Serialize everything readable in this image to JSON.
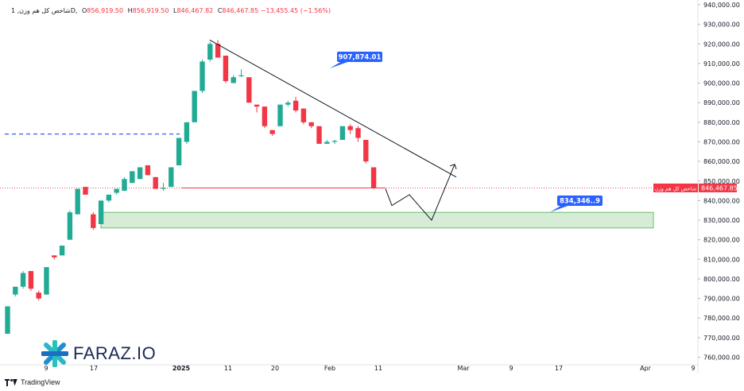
{
  "header": {
    "symbol": "شاخص کل هم وزن, 1D, ",
    "open_label": "O",
    "open": "856,919.50",
    "high_label": "H",
    "high": "856,919.50",
    "low_label": "L",
    "low": "846,467.82",
    "close_label": "C",
    "close": "846,467.85",
    "change": "−13,455.45 (−1.56%)"
  },
  "watermark": {
    "brand": "FARAZ.IO",
    "logo_icon": "faraz-star-icon"
  },
  "footer": {
    "tradingview": "TradingView",
    "logo_icon": "tradingview-logo-icon"
  },
  "colors": {
    "up": "#22ab94",
    "down": "#f23645",
    "price_line": "#f23645",
    "blue_label": "#2962ff",
    "zone_fill": "#c8e6c9",
    "zone_border": "#4caf50"
  },
  "chart_data": {
    "type": "candlestick",
    "ylim": [
      755000,
      942000
    ],
    "y_ticks": [
      "760,000.00",
      "770,000.00",
      "780,000.00",
      "790,000.00",
      "800,000.00",
      "810,000.00",
      "820,000.00",
      "830,000.00",
      "840,000.00",
      "850,000.00",
      "860,000.00",
      "870,000.00",
      "880,000.00",
      "890,000.00",
      "900,000.00",
      "910,000.00",
      "920,000.00",
      "930,000.00",
      "940,000.00"
    ],
    "x_ticks": [
      "9",
      "17",
      "2025",
      "11",
      "20",
      "Feb",
      "11",
      "Mar",
      "9",
      "17",
      "Apr",
      "9"
    ],
    "candles": [
      {
        "o": 772000,
        "h": 786000,
        "l": 772000,
        "c": 786000
      },
      {
        "o": 792000,
        "h": 796000,
        "l": 791000,
        "c": 796000
      },
      {
        "o": 796000,
        "h": 804000,
        "l": 795000,
        "c": 803000
      },
      {
        "o": 804000,
        "h": 804000,
        "l": 794000,
        "c": 795000
      },
      {
        "o": 793000,
        "h": 794000,
        "l": 789000,
        "c": 790000
      },
      {
        "o": 792000,
        "h": 806000,
        "l": 792000,
        "c": 806000
      },
      {
        "o": 812000,
        "h": 812000,
        "l": 810000,
        "c": 811000
      },
      {
        "o": 812000,
        "h": 817000,
        "l": 812000,
        "c": 817000
      },
      {
        "o": 820000,
        "h": 835000,
        "l": 820000,
        "c": 834000
      },
      {
        "o": 833000,
        "h": 846000,
        "l": 833000,
        "c": 846000
      },
      {
        "o": 847000,
        "h": 847000,
        "l": 843000,
        "c": 843000
      },
      {
        "o": 833000,
        "h": 834000,
        "l": 825000,
        "c": 826000
      },
      {
        "o": 828000,
        "h": 840000,
        "l": 828000,
        "c": 840000
      },
      {
        "o": 840000,
        "h": 843000,
        "l": 839000,
        "c": 843000
      },
      {
        "o": 844000,
        "h": 846000,
        "l": 843000,
        "c": 846000
      },
      {
        "o": 845000,
        "h": 852000,
        "l": 845000,
        "c": 851000
      },
      {
        "o": 849000,
        "h": 855000,
        "l": 849000,
        "c": 855000
      },
      {
        "o": 851000,
        "h": 857000,
        "l": 851000,
        "c": 857000
      },
      {
        "o": 858000,
        "h": 858000,
        "l": 853000,
        "c": 853000
      },
      {
        "o": 852000,
        "h": 852000,
        "l": 846000,
        "c": 846000
      },
      {
        "o": 846000,
        "h": 849000,
        "l": 845000,
        "c": 846500
      },
      {
        "o": 847000,
        "h": 857000,
        "l": 847000,
        "c": 857000
      },
      {
        "o": 858000,
        "h": 872000,
        "l": 858000,
        "c": 872000
      },
      {
        "o": 870000,
        "h": 880000,
        "l": 869000,
        "c": 880000
      },
      {
        "o": 880000,
        "h": 896000,
        "l": 880000,
        "c": 896000
      },
      {
        "o": 896000,
        "h": 912000,
        "l": 895000,
        "c": 911000
      },
      {
        "o": 912000,
        "h": 921000,
        "l": 911000,
        "c": 920000
      },
      {
        "o": 920000,
        "h": 922000,
        "l": 913000,
        "c": 913000
      },
      {
        "o": 914000,
        "h": 914000,
        "l": 900000,
        "c": 901000
      },
      {
        "o": 900000,
        "h": 904000,
        "l": 900000,
        "c": 903000
      },
      {
        "o": 904000,
        "h": 907000,
        "l": 903000,
        "c": 904000
      },
      {
        "o": 903000,
        "h": 903000,
        "l": 890000,
        "c": 890000
      },
      {
        "o": 889000,
        "h": 889000,
        "l": 885000,
        "c": 888000
      },
      {
        "o": 888000,
        "h": 888000,
        "l": 877000,
        "c": 878000
      },
      {
        "o": 876000,
        "h": 876000,
        "l": 873000,
        "c": 874000
      },
      {
        "o": 878000,
        "h": 889000,
        "l": 878000,
        "c": 889000
      },
      {
        "o": 889000,
        "h": 891000,
        "l": 888000,
        "c": 890000
      },
      {
        "o": 891000,
        "h": 893000,
        "l": 885000,
        "c": 886000
      },
      {
        "o": 887000,
        "h": 887000,
        "l": 879000,
        "c": 880000
      },
      {
        "o": 880000,
        "h": 880000,
        "l": 877000,
        "c": 878000
      },
      {
        "o": 878000,
        "h": 878000,
        "l": 869000,
        "c": 869000
      },
      {
        "o": 869000,
        "h": 871000,
        "l": 869000,
        "c": 870000
      },
      {
        "o": 870000,
        "h": 871000,
        "l": 869000,
        "c": 870500
      },
      {
        "o": 871000,
        "h": 878000,
        "l": 871000,
        "c": 878000
      },
      {
        "o": 878000,
        "h": 879000,
        "l": 874000,
        "c": 876000
      },
      {
        "o": 877000,
        "h": 878000,
        "l": 870000,
        "c": 872000
      },
      {
        "o": 871000,
        "h": 871000,
        "l": 859000,
        "c": 860000
      },
      {
        "o": 857000,
        "h": 857000,
        "l": 846000,
        "c": 846468
      }
    ],
    "current_price": 846467.85,
    "current_price_label": "846,467.85",
    "current_price_symbol": "شاخص کل هم وزن",
    "dashed_level": 874000,
    "trendline": {
      "from": {
        "index": 26,
        "price": 922000
      },
      "to": {
        "index": 56,
        "price": 852000
      }
    },
    "forecast_path": [
      {
        "index": 47,
        "price": 846000
      },
      {
        "index": 48,
        "price": 837500
      },
      {
        "index": 51,
        "price": 843000
      },
      {
        "index": 55,
        "price": 830000
      },
      {
        "index": 58,
        "price": 858500
      }
    ],
    "zone": {
      "top": 834000,
      "bottom": 826000,
      "from_index": 12,
      "to_index": 86
    },
    "labels": [
      {
        "text": "907,874.01",
        "price": 907874
      },
      {
        "text": "834,346..9",
        "price": 834346
      }
    ]
  }
}
